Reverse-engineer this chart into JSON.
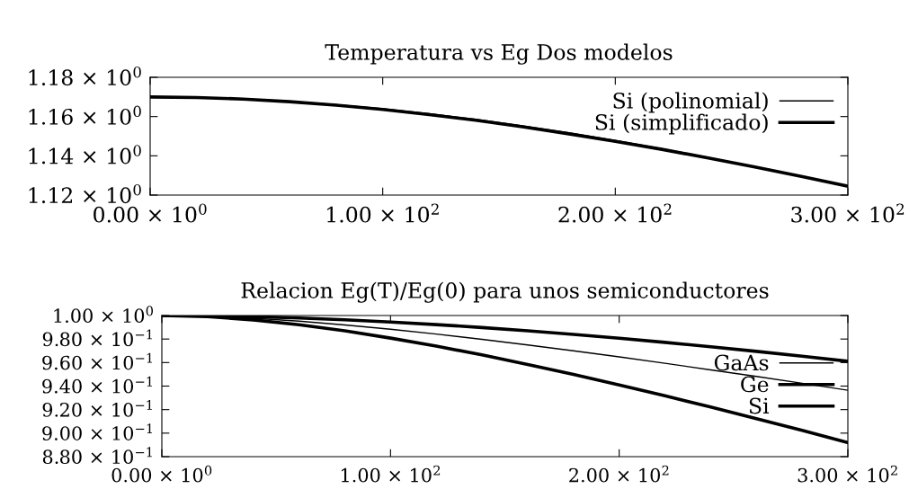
{
  "chart_data": [
    {
      "type": "line",
      "title": "Temperatura vs Eg Dos modelos",
      "x": [
        0,
        20,
        40,
        60,
        80,
        100,
        120,
        140,
        160,
        180,
        200,
        220,
        240,
        260,
        280,
        300
      ],
      "series": [
        {
          "name": "Si (polinomial)",
          "color": "#000000",
          "values": [
            1.17,
            1.1697,
            1.169,
            1.1678,
            1.1661,
            1.164,
            1.1615,
            1.1586,
            1.1553,
            1.1517,
            1.1478,
            1.1436,
            1.1391,
            1.1344,
            1.1295,
            1.1245
          ]
        },
        {
          "name": "Si (simplificado)",
          "color": "#000000",
          "values": [
            1.17,
            1.1697,
            1.1689,
            1.1676,
            1.1658,
            1.1636,
            1.161,
            1.1581,
            1.1548,
            1.1512,
            1.1474,
            1.1433,
            1.1389,
            1.1343,
            1.1295,
            1.1245
          ]
        }
      ],
      "xlim": [
        0,
        300
      ],
      "ylim": [
        1.12,
        1.18
      ],
      "xticks": [
        {
          "value": 0,
          "label": "0.00 × 10$^{0}$"
        },
        {
          "value": 100,
          "label": "1.00 × 10$^{2}$"
        },
        {
          "value": 200,
          "label": "2.00 × 10$^{2}$"
        },
        {
          "value": 300,
          "label": "3.00 × 10$^{2}$"
        }
      ],
      "yticks": [
        {
          "value": 1.12,
          "label": "1.12 × 10$^{0}$"
        },
        {
          "value": 1.14,
          "label": "1.14 × 10$^{0}$"
        },
        {
          "value": 1.16,
          "label": "1.16 × 10$^{0}$"
        },
        {
          "value": 1.18,
          "label": "1.18 × 10$^{0}$"
        }
      ],
      "legend": "top right",
      "grid": false
    },
    {
      "type": "line",
      "title": "Relacion Eg(T)/Eg(0) para unos semiconductores",
      "x": [
        0,
        20,
        40,
        60,
        80,
        100,
        120,
        140,
        160,
        180,
        200,
        220,
        240,
        260,
        280,
        300
      ],
      "series": [
        {
          "name": "GaAs",
          "color": "#000000",
          "values": [
            1.0,
            0.9994,
            0.9977,
            0.9952,
            0.992,
            0.9883,
            0.9842,
            0.9797,
            0.975,
            0.97,
            0.9648,
            0.9594,
            0.9538,
            0.9482,
            0.9424,
            0.9365
          ]
        },
        {
          "name": "Ge",
          "color": "#000000",
          "values": [
            1.0,
            0.999,
            0.9963,
            0.9922,
            0.987,
            0.9808,
            0.974,
            0.9665,
            0.9584,
            0.9499,
            0.941,
            0.9317,
            0.9222,
            0.9123,
            0.9023,
            0.892
          ]
        },
        {
          "name": "Si",
          "color": "#000000",
          "values": [
            1.0,
            0.9998,
            0.999,
            0.9979,
            0.9964,
            0.9945,
            0.9923,
            0.9898,
            0.987,
            0.9839,
            0.9807,
            0.9772,
            0.9734,
            0.9695,
            0.9654,
            0.9611
          ]
        }
      ],
      "xlim": [
        0,
        300
      ],
      "ylim": [
        0.88,
        1.0
      ],
      "xticks": [
        {
          "value": 0,
          "label": "0.00 × 10$^{0}$"
        },
        {
          "value": 100,
          "label": "1.00 × 10$^{2}$"
        },
        {
          "value": 200,
          "label": "2.00 × 10$^{2}$"
        },
        {
          "value": 300,
          "label": "3.00 × 10$^{2}$"
        }
      ],
      "yticks": [
        {
          "value": 0.88,
          "label": "8.80 × 10$^{−1}$"
        },
        {
          "value": 0.9,
          "label": "9.00 × 10$^{−1}$"
        },
        {
          "value": 0.92,
          "label": "9.20 × 10$^{−1}$"
        },
        {
          "value": 0.94,
          "label": "9.40 × 10$^{−1}$"
        },
        {
          "value": 0.96,
          "label": "9.60 × 10$^{−1}$"
        },
        {
          "value": 0.98,
          "label": "9.80 × 10$^{−1}$"
        },
        {
          "value": 1.0,
          "label": "1.00 × 10$^{0}$"
        }
      ],
      "legend": "right",
      "grid": false
    }
  ]
}
